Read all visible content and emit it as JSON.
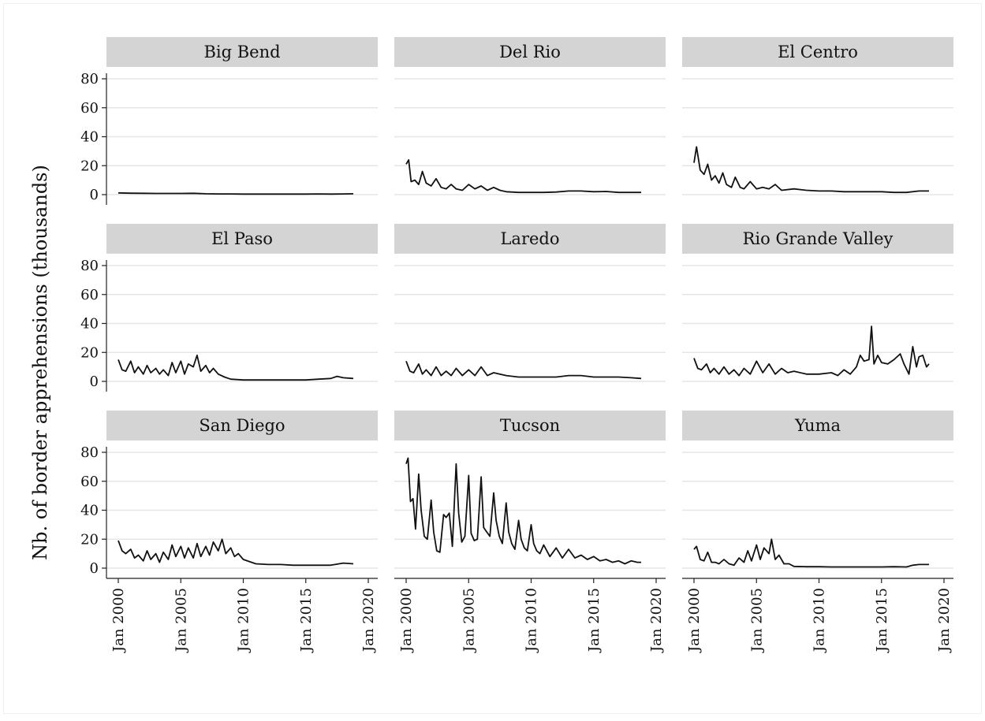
{
  "chart_data": {
    "type": "line",
    "layout": "small-multiples 3x3",
    "ylabel": "Nb. of border apprehensions (thousands)",
    "xlabel": "",
    "ylim": [
      0,
      85
    ],
    "yticks": [
      0,
      20,
      40,
      60,
      80
    ],
    "xlim": [
      1999.92,
      2020.0
    ],
    "xticks": [
      2000,
      2005,
      2010,
      2015,
      2020
    ],
    "xtick_labels": [
      "Jan 2000",
      "Jan 2005",
      "Jan 2010",
      "Jan 2015",
      "Jan 2020"
    ],
    "grid": "horizontal",
    "legend": "none",
    "line_color": "#111111",
    "panel_header_color": "#d4d4d4",
    "panels": [
      {
        "name": "Big Bend",
        "x": [
          2000.0,
          2001.0,
          2002.0,
          2003.0,
          2004.0,
          2005.0,
          2006.0,
          2007.0,
          2008.0,
          2009.0,
          2010.0,
          2011.0,
          2012.0,
          2013.0,
          2014.0,
          2015.0,
          2016.0,
          2017.0,
          2018.0,
          2018.8
        ],
        "values": [
          1.2,
          1.0,
          0.9,
          0.8,
          0.8,
          0.8,
          0.9,
          0.6,
          0.5,
          0.5,
          0.4,
          0.4,
          0.4,
          0.4,
          0.4,
          0.4,
          0.5,
          0.4,
          0.5,
          0.6
        ]
      },
      {
        "name": "Del Rio",
        "x": [
          2000.0,
          2000.2,
          2000.4,
          2000.7,
          2001.0,
          2001.3,
          2001.6,
          2002.0,
          2002.4,
          2002.8,
          2003.2,
          2003.6,
          2004.0,
          2004.5,
          2005.0,
          2005.5,
          2006.0,
          2006.5,
          2007.0,
          2007.5,
          2008.0,
          2009.0,
          2010.0,
          2011.0,
          2012.0,
          2013.0,
          2014.0,
          2015.0,
          2016.0,
          2017.0,
          2018.0,
          2018.8
        ],
        "values": [
          21,
          24,
          9,
          10,
          7,
          16,
          8,
          6,
          11,
          5,
          4,
          7,
          4,
          3,
          7,
          4,
          6,
          3,
          5,
          3,
          2,
          1.5,
          1.5,
          1.5,
          1.8,
          2.5,
          2.5,
          2.0,
          2.2,
          1.5,
          1.5,
          1.5
        ]
      },
      {
        "name": "El Centro",
        "x": [
          2000.0,
          2000.2,
          2000.5,
          2000.8,
          2001.1,
          2001.4,
          2001.7,
          2002.0,
          2002.3,
          2002.6,
          2003.0,
          2003.3,
          2003.7,
          2004.0,
          2004.5,
          2005.0,
          2005.5,
          2006.0,
          2006.5,
          2007.0,
          2008.0,
          2009.0,
          2010.0,
          2011.0,
          2012.0,
          2013.0,
          2014.0,
          2015.0,
          2016.0,
          2017.0,
          2018.0,
          2018.8
        ],
        "values": [
          22,
          33,
          17,
          14,
          21,
          10,
          13,
          8,
          15,
          7,
          5,
          12,
          5,
          4,
          9,
          4,
          5,
          4,
          7,
          3,
          4,
          3,
          2.5,
          2.5,
          2.0,
          2.0,
          2.0,
          2.0,
          1.5,
          1.5,
          2.5,
          2.5
        ]
      },
      {
        "name": "El Paso",
        "x": [
          2000.0,
          2000.3,
          2000.6,
          2001.0,
          2001.3,
          2001.6,
          2002.0,
          2002.3,
          2002.6,
          2003.0,
          2003.3,
          2003.6,
          2004.0,
          2004.3,
          2004.6,
          2005.0,
          2005.3,
          2005.6,
          2006.0,
          2006.3,
          2006.6,
          2007.0,
          2007.3,
          2007.6,
          2008.0,
          2008.5,
          2009.0,
          2010.0,
          2011.0,
          2012.0,
          2013.0,
          2014.0,
          2015.0,
          2016.0,
          2017.0,
          2017.5,
          2018.0,
          2018.8
        ],
        "values": [
          15,
          8,
          7,
          14,
          6,
          10,
          5,
          11,
          6,
          9,
          5,
          8,
          4,
          13,
          6,
          14,
          5,
          12,
          10,
          18,
          7,
          11,
          6,
          9,
          5,
          3,
          1.5,
          1.0,
          1.0,
          1.0,
          1.0,
          1.0,
          1.0,
          1.5,
          2.0,
          3.5,
          2.5,
          2.0
        ]
      },
      {
        "name": "Laredo",
        "x": [
          2000.0,
          2000.3,
          2000.6,
          2001.0,
          2001.3,
          2001.6,
          2002.0,
          2002.4,
          2002.8,
          2003.2,
          2003.6,
          2004.0,
          2004.5,
          2005.0,
          2005.5,
          2006.0,
          2006.5,
          2007.0,
          2008.0,
          2009.0,
          2010.0,
          2011.0,
          2012.0,
          2013.0,
          2014.0,
          2015.0,
          2016.0,
          2017.0,
          2018.0,
          2018.8
        ],
        "values": [
          14,
          7,
          6,
          12,
          5,
          8,
          4,
          10,
          4,
          7,
          4,
          9,
          4,
          8,
          4,
          10,
          4,
          6,
          4,
          3,
          3,
          3,
          3,
          4,
          4,
          3,
          3,
          3,
          2.5,
          2.0
        ]
      },
      {
        "name": "Rio Grande Valley",
        "x": [
          2000.0,
          2000.3,
          2000.6,
          2001.0,
          2001.3,
          2001.6,
          2002.0,
          2002.4,
          2002.8,
          2003.2,
          2003.6,
          2004.0,
          2004.5,
          2005.0,
          2005.5,
          2006.0,
          2006.5,
          2007.0,
          2007.5,
          2008.0,
          2009.0,
          2010.0,
          2011.0,
          2011.5,
          2012.0,
          2012.5,
          2013.0,
          2013.3,
          2013.6,
          2014.0,
          2014.2,
          2014.4,
          2014.7,
          2015.0,
          2015.5,
          2016.0,
          2016.5,
          2016.8,
          2017.2,
          2017.5,
          2017.8,
          2018.0,
          2018.3,
          2018.6,
          2018.8
        ],
        "values": [
          16,
          9,
          8,
          12,
          6,
          9,
          5,
          10,
          5,
          8,
          4,
          9,
          5,
          14,
          6,
          12,
          5,
          9,
          6,
          7,
          5,
          5,
          6,
          4,
          8,
          5,
          10,
          18,
          14,
          15,
          38,
          12,
          18,
          13,
          12,
          15,
          19,
          12,
          5,
          24,
          10,
          17,
          18,
          10,
          12
        ]
      },
      {
        "name": "San Diego",
        "x": [
          2000.0,
          2000.3,
          2000.6,
          2001.0,
          2001.3,
          2001.6,
          2002.0,
          2002.3,
          2002.6,
          2003.0,
          2003.3,
          2003.6,
          2004.0,
          2004.3,
          2004.6,
          2005.0,
          2005.3,
          2005.6,
          2006.0,
          2006.3,
          2006.6,
          2007.0,
          2007.3,
          2007.6,
          2008.0,
          2008.3,
          2008.6,
          2009.0,
          2009.3,
          2009.6,
          2010.0,
          2011.0,
          2012.0,
          2013.0,
          2014.0,
          2015.0,
          2016.0,
          2017.0,
          2018.0,
          2018.8
        ],
        "values": [
          19,
          12,
          10,
          13,
          7,
          9,
          5,
          12,
          6,
          10,
          4,
          11,
          6,
          16,
          8,
          15,
          7,
          14,
          7,
          17,
          8,
          15,
          9,
          18,
          12,
          20,
          10,
          14,
          8,
          10,
          6,
          3,
          2.5,
          2.5,
          2.0,
          2.0,
          2.0,
          2.0,
          3.5,
          3.0
        ]
      },
      {
        "name": "Tucson",
        "x": [
          2000.0,
          2000.15,
          2000.35,
          2000.55,
          2000.75,
          2001.0,
          2001.2,
          2001.45,
          2001.7,
          2002.0,
          2002.2,
          2002.45,
          2002.7,
          2003.0,
          2003.2,
          2003.45,
          2003.7,
          2004.0,
          2004.2,
          2004.45,
          2004.7,
          2005.0,
          2005.2,
          2005.45,
          2005.7,
          2006.0,
          2006.2,
          2006.45,
          2006.7,
          2007.0,
          2007.2,
          2007.45,
          2007.7,
          2008.0,
          2008.2,
          2008.45,
          2008.7,
          2009.0,
          2009.2,
          2009.45,
          2009.7,
          2010.0,
          2010.2,
          2010.45,
          2010.7,
          2011.0,
          2011.5,
          2012.0,
          2012.5,
          2013.0,
          2013.5,
          2014.0,
          2014.5,
          2015.0,
          2015.5,
          2016.0,
          2016.5,
          2017.0,
          2017.5,
          2018.0,
          2018.5,
          2018.8
        ],
        "values": [
          72,
          76,
          46,
          48,
          27,
          65,
          40,
          22,
          20,
          47,
          25,
          12,
          11,
          37,
          35,
          38,
          15,
          72,
          38,
          18,
          22,
          64,
          24,
          19,
          20,
          63,
          28,
          25,
          22,
          52,
          33,
          22,
          17,
          45,
          25,
          17,
          13,
          33,
          20,
          14,
          12,
          30,
          17,
          12,
          10,
          16,
          8,
          14,
          7,
          13,
          7,
          9,
          6,
          8,
          5,
          6,
          4,
          5,
          3,
          5,
          4,
          4
        ]
      },
      {
        "name": "Yuma",
        "x": [
          2000.0,
          2000.2,
          2000.5,
          2000.8,
          2001.1,
          2001.4,
          2001.7,
          2002.0,
          2002.4,
          2002.8,
          2003.2,
          2003.6,
          2004.0,
          2004.3,
          2004.6,
          2005.0,
          2005.3,
          2005.6,
          2006.0,
          2006.2,
          2006.5,
          2006.8,
          2007.2,
          2007.6,
          2008.0,
          2009.0,
          2010.0,
          2011.0,
          2012.0,
          2013.0,
          2014.0,
          2015.0,
          2016.0,
          2017.0,
          2017.5,
          2018.0,
          2018.8
        ],
        "values": [
          13,
          15,
          6,
          5,
          11,
          4,
          4,
          3,
          6,
          3,
          2,
          7,
          4,
          12,
          5,
          16,
          6,
          14,
          10,
          20,
          6,
          9,
          3,
          3,
          1.2,
          1.0,
          1.0,
          0.8,
          0.8,
          0.8,
          0.8,
          0.8,
          1.0,
          0.8,
          2.0,
          2.5,
          2.5
        ]
      }
    ]
  }
}
